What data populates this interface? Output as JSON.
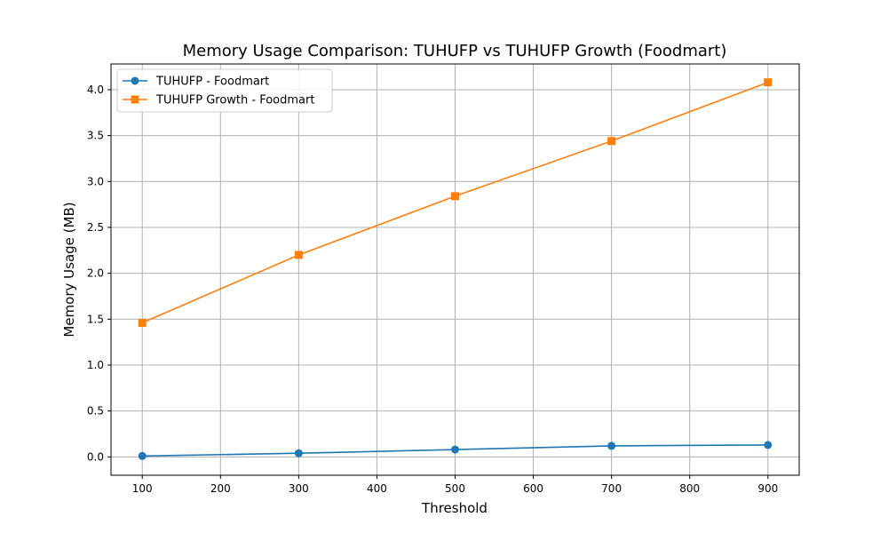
{
  "chart_data": {
    "type": "line",
    "title": "Memory Usage Comparison: TUHUFP vs TUHUFP Growth (Foodmart)",
    "xlabel": "Threshold",
    "ylabel": "Memory Usage (MB)",
    "x": [
      100,
      300,
      500,
      700,
      900
    ],
    "xlim": [
      60,
      940
    ],
    "ylim": [
      -0.2,
      4.28
    ],
    "xticks": [
      100,
      200,
      300,
      400,
      500,
      600,
      700,
      800,
      900
    ],
    "xtick_labels": [
      "100",
      "200",
      "300",
      "400",
      "500",
      "600",
      "700",
      "800",
      "900"
    ],
    "yticks": [
      0.0,
      0.5,
      1.0,
      1.5,
      2.0,
      2.5,
      3.0,
      3.5,
      4.0
    ],
    "ytick_labels": [
      "0.0",
      "0.5",
      "1.0",
      "1.5",
      "2.0",
      "2.5",
      "3.0",
      "3.5",
      "4.0"
    ],
    "grid": true,
    "legend_position": "top-left",
    "series": [
      {
        "name": "TUHUFP - Foodmart",
        "values": [
          0.01,
          0.04,
          0.08,
          0.12,
          0.13
        ],
        "color": "#1f77b4",
        "marker": "circle"
      },
      {
        "name": "TUHUFP Growth - Foodmart",
        "values": [
          1.46,
          2.2,
          2.84,
          3.44,
          4.08
        ],
        "color": "#ff7f0e",
        "marker": "square"
      }
    ]
  }
}
